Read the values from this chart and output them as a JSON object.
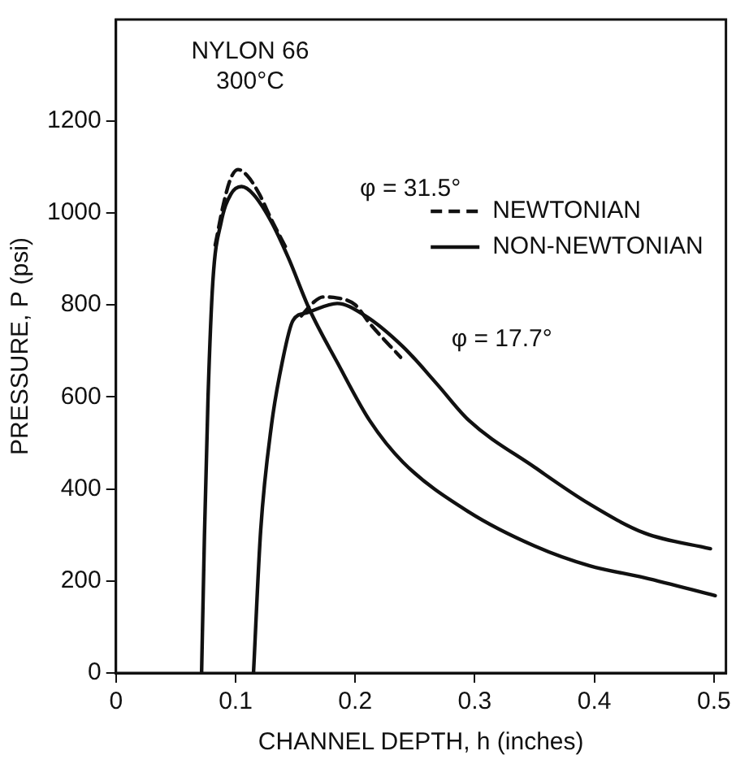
{
  "chart_data": {
    "type": "line",
    "xlabel": "CHANNEL DEPTH, h (inches)",
    "ylabel": "PRESSURE, P (psi)",
    "xlim": [
      0,
      0.51
    ],
    "ylim": [
      0,
      1420
    ],
    "xticks": [
      {
        "value": 0,
        "label": "0"
      },
      {
        "value": 0.1,
        "label": "0.1"
      },
      {
        "value": 0.2,
        "label": "0.2"
      },
      {
        "value": 0.3,
        "label": "0.3"
      },
      {
        "value": 0.4,
        "label": "0.4"
      },
      {
        "value": 0.5,
        "label": "0.5"
      }
    ],
    "yticks": [
      0,
      200,
      400,
      600,
      800,
      1000,
      1200
    ],
    "grid": false,
    "legend": "top right",
    "marker": "none",
    "annotations": [
      "NYLON 66",
      "300°C",
      "φ = 31.5°",
      "φ = 17.7°"
    ],
    "series": [
      {
        "name": "NEWTONIAN",
        "color": "#111111",
        "line_style": "dashed",
        "x": [
          0.083,
          0.09,
          0.096,
          0.102,
          0.11,
          0.12,
          0.13,
          0.143
        ],
        "values": [
          930,
          1020,
          1075,
          1094,
          1080,
          1040,
          985,
          920
        ]
      },
      {
        "name": "NON-NEWTONIAN",
        "color": "#111111",
        "line_style": "solid",
        "x": [
          0.0716,
          0.074,
          0.077,
          0.081,
          0.088,
          0.096,
          0.105,
          0.115,
          0.13,
          0.144,
          0.162,
          0.185,
          0.212,
          0.24,
          0.295,
          0.35,
          0.396,
          0.442,
          0.501
        ],
        "values": [
          0,
          300,
          600,
          850,
          980,
          1040,
          1057,
          1040,
          980,
          903,
          789,
          675,
          549,
          458,
          350,
          276,
          233,
          207,
          168
        ]
      },
      {
        "color": "#111111",
        "line_style": "dashed",
        "x": [
          0.155,
          0.165,
          0.173,
          0.185,
          0.2,
          0.212,
          0.238
        ],
        "values": [
          776,
          805,
          817,
          815,
          800,
          760,
          686
        ]
      },
      {
        "color": "#111111",
        "line_style": "solid",
        "x": [
          0.115,
          0.121,
          0.13,
          0.139,
          0.148,
          0.16,
          0.185,
          0.208,
          0.24,
          0.268,
          0.295,
          0.35,
          0.396,
          0.442,
          0.497
        ],
        "values": [
          0,
          310,
          538,
          675,
          766,
          783,
          803,
          777,
          709,
          629,
          549,
          447,
          367,
          304,
          270
        ]
      }
    ]
  }
}
